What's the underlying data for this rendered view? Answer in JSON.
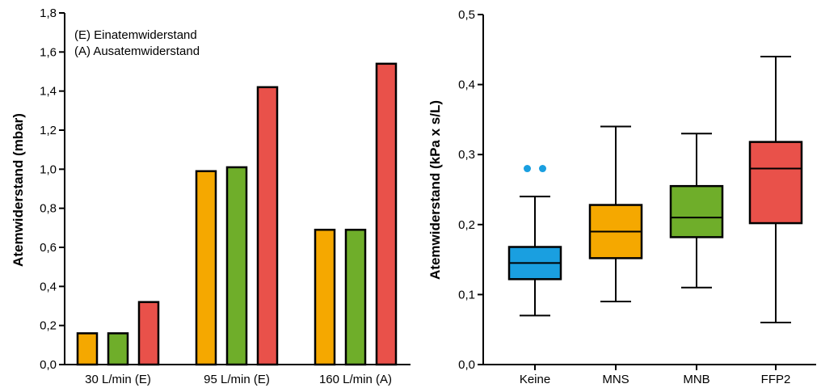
{
  "colors": {
    "keine": "#1a9fe0",
    "mns": "#f5a800",
    "mnb": "#6fae2a",
    "ffp2": "#e9514a",
    "axis": "#000000"
  },
  "chart_data": [
    {
      "type": "bar",
      "ylabel": "Atemwiderstand (mbar)",
      "xlabel": "",
      "ylim": [
        0,
        1.8
      ],
      "yticks": [
        "0,0",
        "0,2",
        "0,4",
        "0,6",
        "0,8",
        "1,0",
        "1,2",
        "1,4",
        "1,6",
        "1,8"
      ],
      "categories": [
        "30 L/min (E)",
        "95 L/min (E)",
        "160 L/min (A)"
      ],
      "series": [
        {
          "color": "#f5a800",
          "values": [
            0.16,
            0.99,
            0.69
          ]
        },
        {
          "color": "#6fae2a",
          "values": [
            0.16,
            1.01,
            0.69
          ]
        },
        {
          "color": "#e9514a",
          "values": [
            0.32,
            1.42,
            1.54
          ]
        }
      ],
      "annotations": [
        "(E) Einatemwiderstand",
        "(A) Ausatemwiderstand"
      ],
      "grid": false
    },
    {
      "type": "box",
      "ylabel": "Atemwiderstand (kPa x s/L)",
      "xlabel": "",
      "ylim": [
        0,
        0.5
      ],
      "yticks": [
        "0,0",
        "0,1",
        "0,2",
        "0,3",
        "0,4",
        "0,5"
      ],
      "categories": [
        "Keine",
        "MNS",
        "MNB",
        "FFP2"
      ],
      "boxes": [
        {
          "color": "#1a9fe0",
          "min": 0.07,
          "q1": 0.122,
          "median": 0.145,
          "q3": 0.168,
          "max": 0.24,
          "outliers": [
            0.28,
            0.28
          ]
        },
        {
          "color": "#f5a800",
          "min": 0.09,
          "q1": 0.152,
          "median": 0.19,
          "q3": 0.228,
          "max": 0.34,
          "outliers": []
        },
        {
          "color": "#6fae2a",
          "min": 0.11,
          "q1": 0.182,
          "median": 0.21,
          "q3": 0.255,
          "max": 0.33,
          "outliers": []
        },
        {
          "color": "#e9514a",
          "min": 0.06,
          "q1": 0.202,
          "median": 0.28,
          "q3": 0.318,
          "max": 0.44,
          "outliers": []
        }
      ],
      "grid": false
    }
  ]
}
